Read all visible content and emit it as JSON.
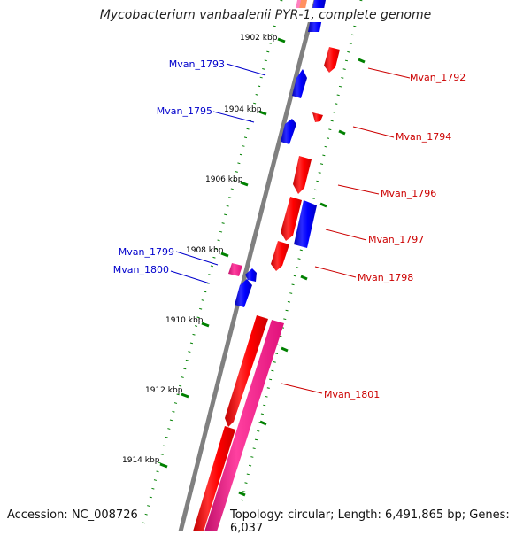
{
  "title": "Mycobacterium vanbaalenii PYR-1, complete genome",
  "footer": {
    "accession": "Accession: NC_008726",
    "topology": "Topology: circular; Length: 6,491,865 bp; Genes: 6,037"
  },
  "colors": {
    "forward_gene": "#0000ff",
    "reverse_gene": "#ff0000",
    "rna_gene": "#ff1493",
    "tick": "#008000",
    "backbone": "#808080"
  },
  "scale_labels": [
    "1902 kbp",
    "1904 kbp",
    "1906 kbp",
    "1908 kbp",
    "1910 kbp",
    "1912 kbp",
    "1914 kbp"
  ],
  "genes_left": [
    "Mvan_1793",
    "Mvan_1795",
    "Mvan_1799",
    "Mvan_1800"
  ],
  "genes_right": [
    "Mvan_1792",
    "Mvan_1794",
    "Mvan_1796",
    "Mvan_1797",
    "Mvan_1798",
    "Mvan_1801"
  ]
}
